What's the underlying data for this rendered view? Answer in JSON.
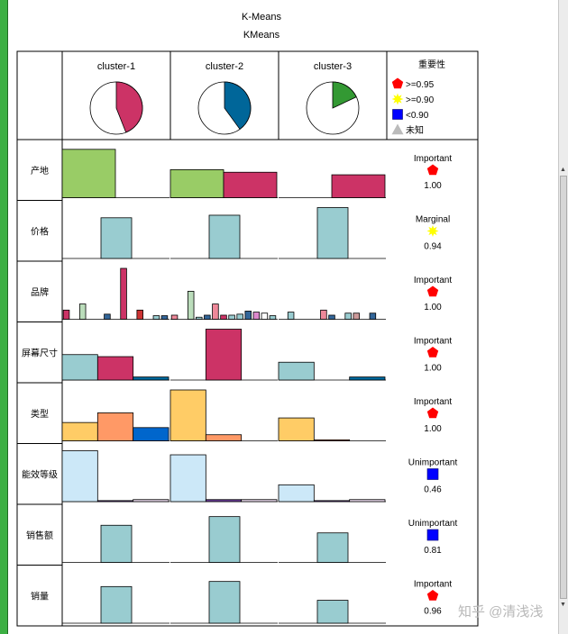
{
  "window": {
    "title": "K-Means",
    "subtitle": "KMeans"
  },
  "chart_data": {
    "type": "bar",
    "clusters": [
      {
        "label": "cluster-1",
        "pie_fraction": 0.44,
        "pie_color": "#cc3366"
      },
      {
        "label": "cluster-2",
        "pie_fraction": 0.4,
        "pie_color": "#006699"
      },
      {
        "label": "cluster-3",
        "pie_fraction": 0.18,
        "pie_color": "#339933"
      }
    ],
    "legend": {
      "title": "重要性",
      "items": [
        {
          "label": ">=0.95",
          "shape": "pentagon",
          "color": "#ff0000"
        },
        {
          "label": ">=0.90",
          "shape": "star",
          "color": "#ffff00"
        },
        {
          "label": "<0.90",
          "shape": "square",
          "color": "#0000ff"
        },
        {
          "label": "未知",
          "shape": "triangle",
          "color": "#bbbbbb"
        }
      ]
    },
    "fields": [
      {
        "name": "产地",
        "importance": "Important",
        "value": "1.00",
        "shape": "pentagon",
        "color": "#ff0000",
        "bars": [
          [
            {
              "v": 0.95,
              "c": "#99cc66"
            },
            {
              "v": 0,
              "c": "#cc3366"
            }
          ],
          [
            {
              "v": 0.55,
              "c": "#99cc66"
            },
            {
              "v": 0.5,
              "c": "#cc3366"
            }
          ],
          [
            {
              "v": 0,
              "c": "#99cc66"
            },
            {
              "v": 0.45,
              "c": "#cc3366"
            }
          ]
        ]
      },
      {
        "name": "价格",
        "importance": "Marginal",
        "value": "0.94",
        "shape": "star",
        "color": "#ffff00",
        "centered": true,
        "bars": [
          [
            {
              "v": 0.8,
              "c": "#99ccd0"
            }
          ],
          [
            {
              "v": 0.85,
              "c": "#99ccd0"
            }
          ],
          [
            {
              "v": 1.0,
              "c": "#99ccd0"
            }
          ]
        ]
      },
      {
        "name": "品牌",
        "importance": "Important",
        "value": "1.00",
        "shape": "pentagon",
        "color": "#ff0000",
        "bars": [
          [
            {
              "v": 0.18,
              "c": "#cc3366"
            },
            {
              "v": 0,
              "c": "#ee8899"
            },
            {
              "v": 0.3,
              "c": "#bbddbb"
            },
            {
              "v": 0,
              "c": "#99ccd0"
            },
            {
              "v": 0,
              "c": "#336699"
            },
            {
              "v": 0.1,
              "c": "#336699"
            },
            {
              "v": 0,
              "c": "#dd99cc"
            },
            {
              "v": 1.0,
              "c": "#cc3366"
            },
            {
              "v": 0,
              "c": "#dd99bb"
            },
            {
              "v": 0.18,
              "c": "#cc3333"
            },
            {
              "v": 0,
              "c": "#99ccd0"
            },
            {
              "v": 0.07,
              "c": "#99ccd0"
            },
            {
              "v": 0.07,
              "c": "#336699"
            }
          ],
          [
            {
              "v": 0.08,
              "c": "#ee8899"
            },
            {
              "v": 0,
              "c": "#cc3366"
            },
            {
              "v": 0.55,
              "c": "#bbddbb"
            },
            {
              "v": 0.04,
              "c": "#99ccd0"
            },
            {
              "v": 0.08,
              "c": "#336699"
            },
            {
              "v": 0.3,
              "c": "#ee8899"
            },
            {
              "v": 0.08,
              "c": "#cc3366"
            },
            {
              "v": 0.08,
              "c": "#99ccd0"
            },
            {
              "v": 0.1,
              "c": "#99ccd0"
            },
            {
              "v": 0.16,
              "c": "#336699"
            },
            {
              "v": 0.14,
              "c": "#dd88cc"
            },
            {
              "v": 0.12,
              "c": "#ffffff"
            },
            {
              "v": 0.07,
              "c": "#99ccd0"
            }
          ],
          [
            {
              "v": 0,
              "c": "#99ccd0"
            },
            {
              "v": 0.14,
              "c": "#99ccd0"
            },
            {
              "v": 0,
              "c": "#bbddbb"
            },
            {
              "v": 0,
              "c": "#99ccd0"
            },
            {
              "v": 0,
              "c": "#336699"
            },
            {
              "v": 0.18,
              "c": "#ee8899"
            },
            {
              "v": 0.08,
              "c": "#336699"
            },
            {
              "v": 0,
              "c": "#ee8899"
            },
            {
              "v": 0.12,
              "c": "#99ccd0"
            },
            {
              "v": 0.12,
              "c": "#cc9999"
            },
            {
              "v": 0,
              "c": "#99ccd0"
            },
            {
              "v": 0.12,
              "c": "#336699"
            },
            {
              "v": 0,
              "c": "#99ccd0"
            }
          ]
        ]
      },
      {
        "name": "屏幕尺寸",
        "importance": "Important",
        "value": "1.00",
        "shape": "pentagon",
        "color": "#ff0000",
        "bars": [
          [
            {
              "v": 0.5,
              "c": "#99ccd0"
            },
            {
              "v": 0.46,
              "c": "#cc3366"
            },
            {
              "v": 0.06,
              "c": "#006699"
            }
          ],
          [
            {
              "v": 0,
              "c": "#99ccd0"
            },
            {
              "v": 1.0,
              "c": "#cc3366"
            },
            {
              "v": 0,
              "c": "#006699"
            }
          ],
          [
            {
              "v": 0.35,
              "c": "#99ccd0"
            },
            {
              "v": 0,
              "c": "#cc3366"
            },
            {
              "v": 0.06,
              "c": "#006699"
            }
          ]
        ]
      },
      {
        "name": "类型",
        "importance": "Important",
        "value": "1.00",
        "shape": "pentagon",
        "color": "#ff0000",
        "bars": [
          [
            {
              "v": 0.36,
              "c": "#ffcc66"
            },
            {
              "v": 0.55,
              "c": "#ff9966"
            },
            {
              "v": 0.26,
              "c": "#0066cc"
            }
          ],
          [
            {
              "v": 1.0,
              "c": "#ffcc66"
            },
            {
              "v": 0.12,
              "c": "#ff9966"
            },
            {
              "v": 0,
              "c": "#0066cc"
            }
          ],
          [
            {
              "v": 0.45,
              "c": "#ffcc66"
            },
            {
              "v": 0.02,
              "c": "#ff9966"
            },
            {
              "v": 0,
              "c": "#0066cc"
            }
          ]
        ]
      },
      {
        "name": "能效等级",
        "importance": "Unimportant",
        "value": "0.46",
        "shape": "square",
        "color": "#0000ff",
        "bars": [
          [
            {
              "v": 1.0,
              "c": "#cce8f8"
            },
            {
              "v": 0.02,
              "c": "#6a3d9a"
            },
            {
              "v": 0.04,
              "c": "#e8d8ec"
            }
          ],
          [
            {
              "v": 0.92,
              "c": "#cce8f8"
            },
            {
              "v": 0.04,
              "c": "#6a3d9a"
            },
            {
              "v": 0.04,
              "c": "#e8d8ec"
            }
          ],
          [
            {
              "v": 0.33,
              "c": "#cce8f8"
            },
            {
              "v": 0.02,
              "c": "#6a3d9a"
            },
            {
              "v": 0.04,
              "c": "#e8d8ec"
            }
          ]
        ]
      },
      {
        "name": "销售额",
        "importance": "Unimportant",
        "value": "0.81",
        "shape": "square",
        "color": "#0000ff",
        "centered": true,
        "bars": [
          [
            {
              "v": 0.73,
              "c": "#99ccd0"
            }
          ],
          [
            {
              "v": 0.9,
              "c": "#99ccd0"
            }
          ],
          [
            {
              "v": 0.58,
              "c": "#99ccd0"
            }
          ]
        ]
      },
      {
        "name": "销量",
        "importance": "Important",
        "value": "0.96",
        "shape": "pentagon",
        "color": "#ff0000",
        "centered": true,
        "bars": [
          [
            {
              "v": 0.72,
              "c": "#99ccd0"
            }
          ],
          [
            {
              "v": 0.82,
              "c": "#99ccd0"
            }
          ],
          [
            {
              "v": 0.45,
              "c": "#99ccd0"
            }
          ]
        ]
      }
    ]
  },
  "watermark": "知乎 @清浅浅"
}
